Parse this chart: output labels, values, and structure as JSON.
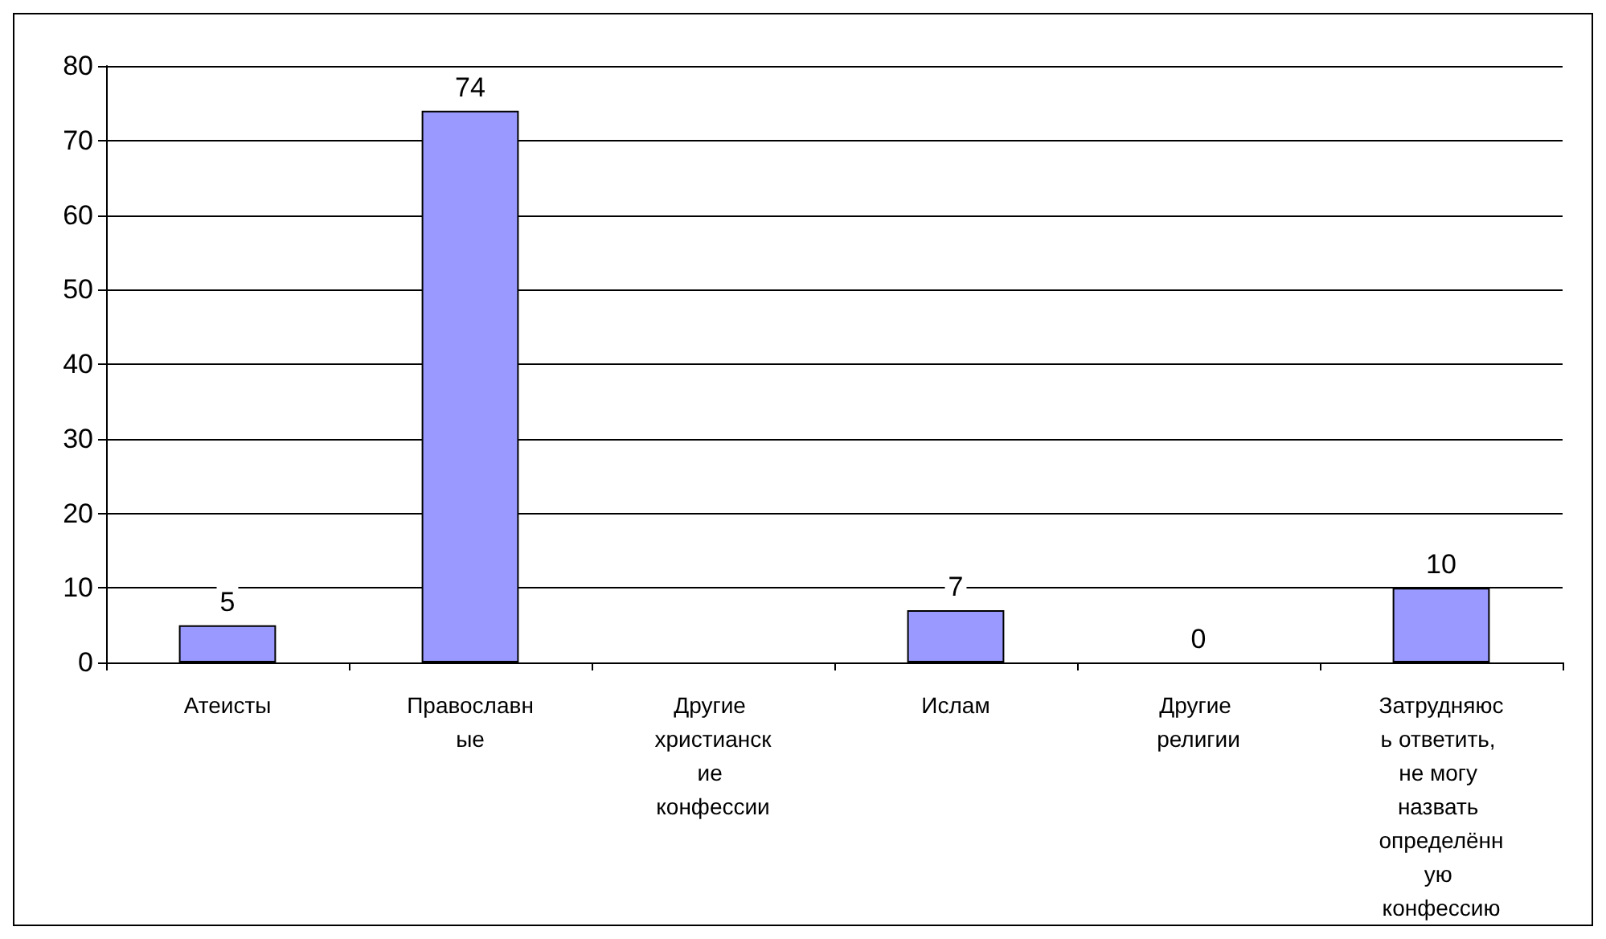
{
  "chart_data": {
    "type": "bar",
    "categories": [
      "Атеисты",
      "Православные",
      "Другие христианские конфессии",
      "Ислам",
      "Другие религии",
      "Затрудняюсь ответить, не могу назвать определённую конфессию"
    ],
    "values": [
      5,
      74,
      0,
      7,
      0,
      10
    ],
    "value_labels": [
      "5",
      "74",
      null,
      "7",
      "0",
      "10"
    ],
    "color": "#9999ff",
    "ylim": [
      0,
      80
    ],
    "yticks": [
      0,
      10,
      20,
      30,
      40,
      50,
      60,
      70,
      80
    ],
    "grid": "y"
  }
}
